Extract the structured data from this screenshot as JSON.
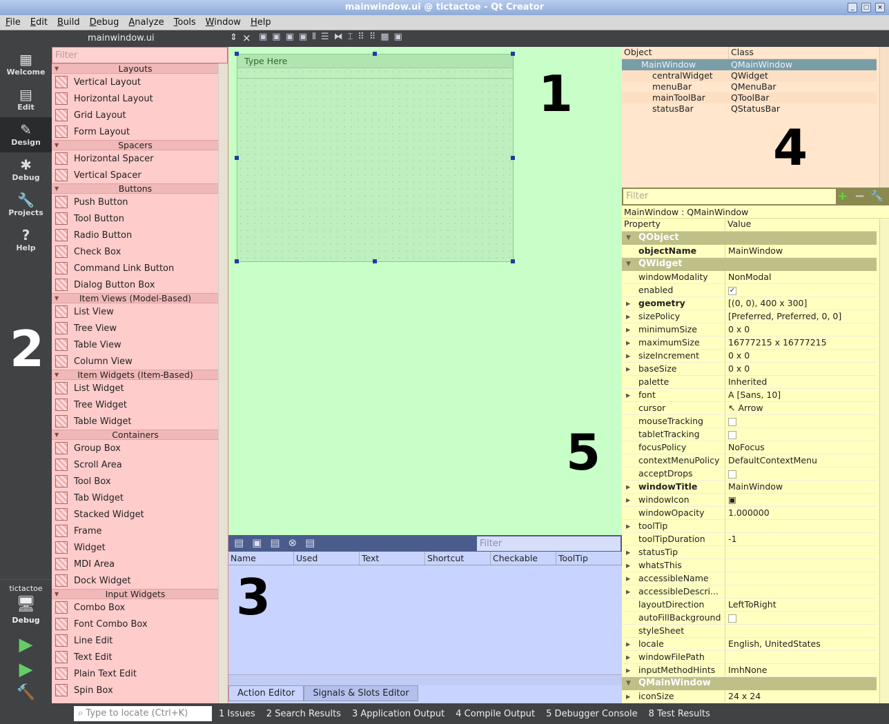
{
  "window": {
    "title": "mainwindow.ui @ tictactoe - Qt Creator",
    "min": "_",
    "max": "□",
    "close": "×"
  },
  "menu": [
    "File",
    "Edit",
    "Build",
    "Debug",
    "Analyze",
    "Tools",
    "Window",
    "Help"
  ],
  "modes": [
    {
      "label": "Welcome",
      "icon": "▦"
    },
    {
      "label": "Edit",
      "icon": "▤"
    },
    {
      "label": "Design",
      "icon": "✎"
    },
    {
      "label": "Debug",
      "icon": "✱"
    },
    {
      "label": "Projects",
      "icon": "🔧"
    },
    {
      "label": "Help",
      "icon": "?"
    }
  ],
  "target": {
    "project": "tictactoe",
    "config": "Debug"
  },
  "toolbar": {
    "file": "mainwindow.ui",
    "close": "×"
  },
  "widget_box": {
    "filter_placeholder": "Filter",
    "categories": [
      {
        "name": "Layouts",
        "items": [
          "Vertical Layout",
          "Horizontal Layout",
          "Grid Layout",
          "Form Layout"
        ]
      },
      {
        "name": "Spacers",
        "items": [
          "Horizontal Spacer",
          "Vertical Spacer"
        ]
      },
      {
        "name": "Buttons",
        "items": [
          "Push Button",
          "Tool Button",
          "Radio Button",
          "Check Box",
          "Command Link Button",
          "Dialog Button Box"
        ]
      },
      {
        "name": "Item Views (Model-Based)",
        "items": [
          "List View",
          "Tree View",
          "Table View",
          "Column View"
        ]
      },
      {
        "name": "Item Widgets (Item-Based)",
        "items": [
          "List Widget",
          "Tree Widget",
          "Table Widget"
        ]
      },
      {
        "name": "Containers",
        "items": [
          "Group Box",
          "Scroll Area",
          "Tool Box",
          "Tab Widget",
          "Stacked Widget",
          "Frame",
          "Widget",
          "MDI Area",
          "Dock Widget"
        ]
      },
      {
        "name": "Input Widgets",
        "items": [
          "Combo Box",
          "Font Combo Box",
          "Line Edit",
          "Text Edit",
          "Plain Text Edit",
          "Spin Box"
        ]
      }
    ]
  },
  "form": {
    "menu_placeholder": "Type Here"
  },
  "action_editor": {
    "filter_placeholder": "Filter",
    "columns": [
      "Name",
      "Used",
      "Text",
      "Shortcut",
      "Checkable",
      "ToolTip"
    ],
    "tabs": [
      "Action Editor",
      "Signals & Slots Editor"
    ]
  },
  "object_inspector": {
    "columns": [
      "Object",
      "Class"
    ],
    "rows": [
      {
        "object": "MainWindow",
        "class": "QMainWindow",
        "level": 0,
        "selected": true
      },
      {
        "object": "centralWidget",
        "class": "QWidget",
        "level": 1
      },
      {
        "object": "menuBar",
        "class": "QMenuBar",
        "level": 1
      },
      {
        "object": "mainToolBar",
        "class": "QToolBar",
        "level": 1
      },
      {
        "object": "statusBar",
        "class": "QStatusBar",
        "level": 1
      }
    ]
  },
  "property_editor": {
    "filter_placeholder": "Filter",
    "context": "MainWindow : QMainWindow",
    "columns": [
      "Property",
      "Value"
    ],
    "rows": [
      {
        "group": "QObject"
      },
      {
        "k": "objectName",
        "v": "MainWindow",
        "bold": true
      },
      {
        "group": "QWidget"
      },
      {
        "k": "windowModality",
        "v": "NonModal"
      },
      {
        "k": "enabled",
        "v": "✓",
        "check": true
      },
      {
        "k": "geometry",
        "v": "[(0, 0), 400 x 300]",
        "bold": true,
        "exp": true
      },
      {
        "k": "sizePolicy",
        "v": "[Preferred, Preferred, 0, 0]",
        "exp": true
      },
      {
        "k": "minimumSize",
        "v": "0 x 0",
        "exp": true
      },
      {
        "k": "maximumSize",
        "v": "16777215 x 16777215",
        "exp": true
      },
      {
        "k": "sizeIncrement",
        "v": "0 x 0",
        "exp": true
      },
      {
        "k": "baseSize",
        "v": "0 x 0",
        "exp": true
      },
      {
        "k": "palette",
        "v": "Inherited"
      },
      {
        "k": "font",
        "v": "A  [Sans, 10]",
        "exp": true
      },
      {
        "k": "cursor",
        "v": "↖  Arrow"
      },
      {
        "k": "mouseTracking",
        "v": "",
        "check": true
      },
      {
        "k": "tabletTracking",
        "v": "",
        "check": true
      },
      {
        "k": "focusPolicy",
        "v": "NoFocus"
      },
      {
        "k": "contextMenuPolicy",
        "v": "DefaultContextMenu"
      },
      {
        "k": "acceptDrops",
        "v": "",
        "check": true
      },
      {
        "k": "windowTitle",
        "v": "MainWindow",
        "bold": true,
        "exp": true
      },
      {
        "k": "windowIcon",
        "v": "▣",
        "exp": true
      },
      {
        "k": "windowOpacity",
        "v": "1.000000"
      },
      {
        "k": "toolTip",
        "v": "",
        "exp": true
      },
      {
        "k": "toolTipDuration",
        "v": "-1"
      },
      {
        "k": "statusTip",
        "v": "",
        "exp": true
      },
      {
        "k": "whatsThis",
        "v": "",
        "exp": true
      },
      {
        "k": "accessibleName",
        "v": "",
        "exp": true
      },
      {
        "k": "accessibleDescri...",
        "v": "",
        "exp": true
      },
      {
        "k": "layoutDirection",
        "v": "LeftToRight"
      },
      {
        "k": "autoFillBackground",
        "v": "",
        "check": true
      },
      {
        "k": "styleSheet",
        "v": ""
      },
      {
        "k": "locale",
        "v": "English, UnitedStates",
        "exp": true
      },
      {
        "k": "windowFilePath",
        "v": "",
        "exp": true
      },
      {
        "k": "inputMethodHints",
        "v": "ImhNone",
        "exp": true
      },
      {
        "group": "QMainWindow"
      },
      {
        "k": "iconSize",
        "v": "24 x 24",
        "exp": true
      }
    ]
  },
  "statusbar": {
    "locate_placeholder": "Type to locate (Ctrl+K)",
    "panes": [
      "1  Issues",
      "2  Search Results",
      "3  Application Output",
      "4  Compile Output",
      "5  Debugger Console",
      "8  Test Results"
    ]
  },
  "annotations": [
    "1",
    "2",
    "3",
    "4",
    "5"
  ],
  "colors": {
    "widget_box": "#ffcccc",
    "canvas": "#c8ffc8",
    "action_editor": "#c8d4ff",
    "object_inspector": "#ffe6cc",
    "property_editor": "#ffffc0"
  }
}
